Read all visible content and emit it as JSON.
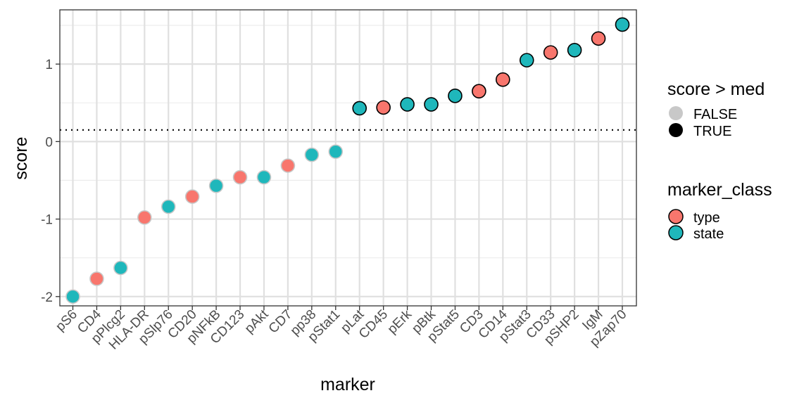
{
  "chart_data": {
    "type": "scatter",
    "xlabel": "marker",
    "ylabel": "score",
    "ylim": [
      -2.12,
      1.7
    ],
    "yticks": [
      -2,
      -1,
      0,
      1
    ],
    "ytick_labels": [
      "-2",
      "-1",
      "0",
      "1"
    ],
    "median_line": 0.15,
    "grid": true,
    "categories": [
      "pS6",
      "CD4",
      "pPlcg2",
      "HLA-DR",
      "pSlp76",
      "CD20",
      "pNFkB",
      "CD123",
      "pAkt",
      "CD7",
      "pp38",
      "pStat1",
      "pLat",
      "CD45",
      "pErk",
      "pBtk",
      "pStat5",
      "CD3",
      "CD14",
      "pStat3",
      "CD33",
      "pSHP2",
      "IgM",
      "pZap70"
    ],
    "values": [
      -2.0,
      -1.77,
      -1.63,
      -0.98,
      -0.84,
      -0.71,
      -0.57,
      -0.46,
      -0.46,
      -0.31,
      -0.17,
      -0.13,
      0.43,
      0.44,
      0.48,
      0.48,
      0.59,
      0.65,
      0.8,
      1.05,
      1.15,
      1.18,
      1.33,
      1.51
    ],
    "marker_class": [
      "state",
      "type",
      "state",
      "type",
      "state",
      "type",
      "state",
      "type",
      "state",
      "type",
      "state",
      "state",
      "state",
      "type",
      "state",
      "state",
      "state",
      "type",
      "type",
      "state",
      "type",
      "state",
      "type",
      "state"
    ],
    "above_median": [
      false,
      false,
      false,
      false,
      false,
      false,
      false,
      false,
      false,
      false,
      false,
      false,
      true,
      true,
      true,
      true,
      true,
      true,
      true,
      true,
      true,
      true,
      true,
      true
    ],
    "legends": [
      {
        "title": "score > med",
        "items": [
          {
            "label": "FALSE",
            "color": "#c8c8c8"
          },
          {
            "label": "TRUE",
            "color": "#000000"
          }
        ]
      },
      {
        "title": "marker_class",
        "items": [
          {
            "label": "type",
            "color": "#f8766d"
          },
          {
            "label": "state",
            "color": "#00bfc4"
          }
        ]
      }
    ],
    "legend_position": "right",
    "colors": {
      "type": "#f8766d",
      "state": "#1fb7bb",
      "outline_true": "#000000",
      "outline_false": "#c8c8c8"
    }
  }
}
